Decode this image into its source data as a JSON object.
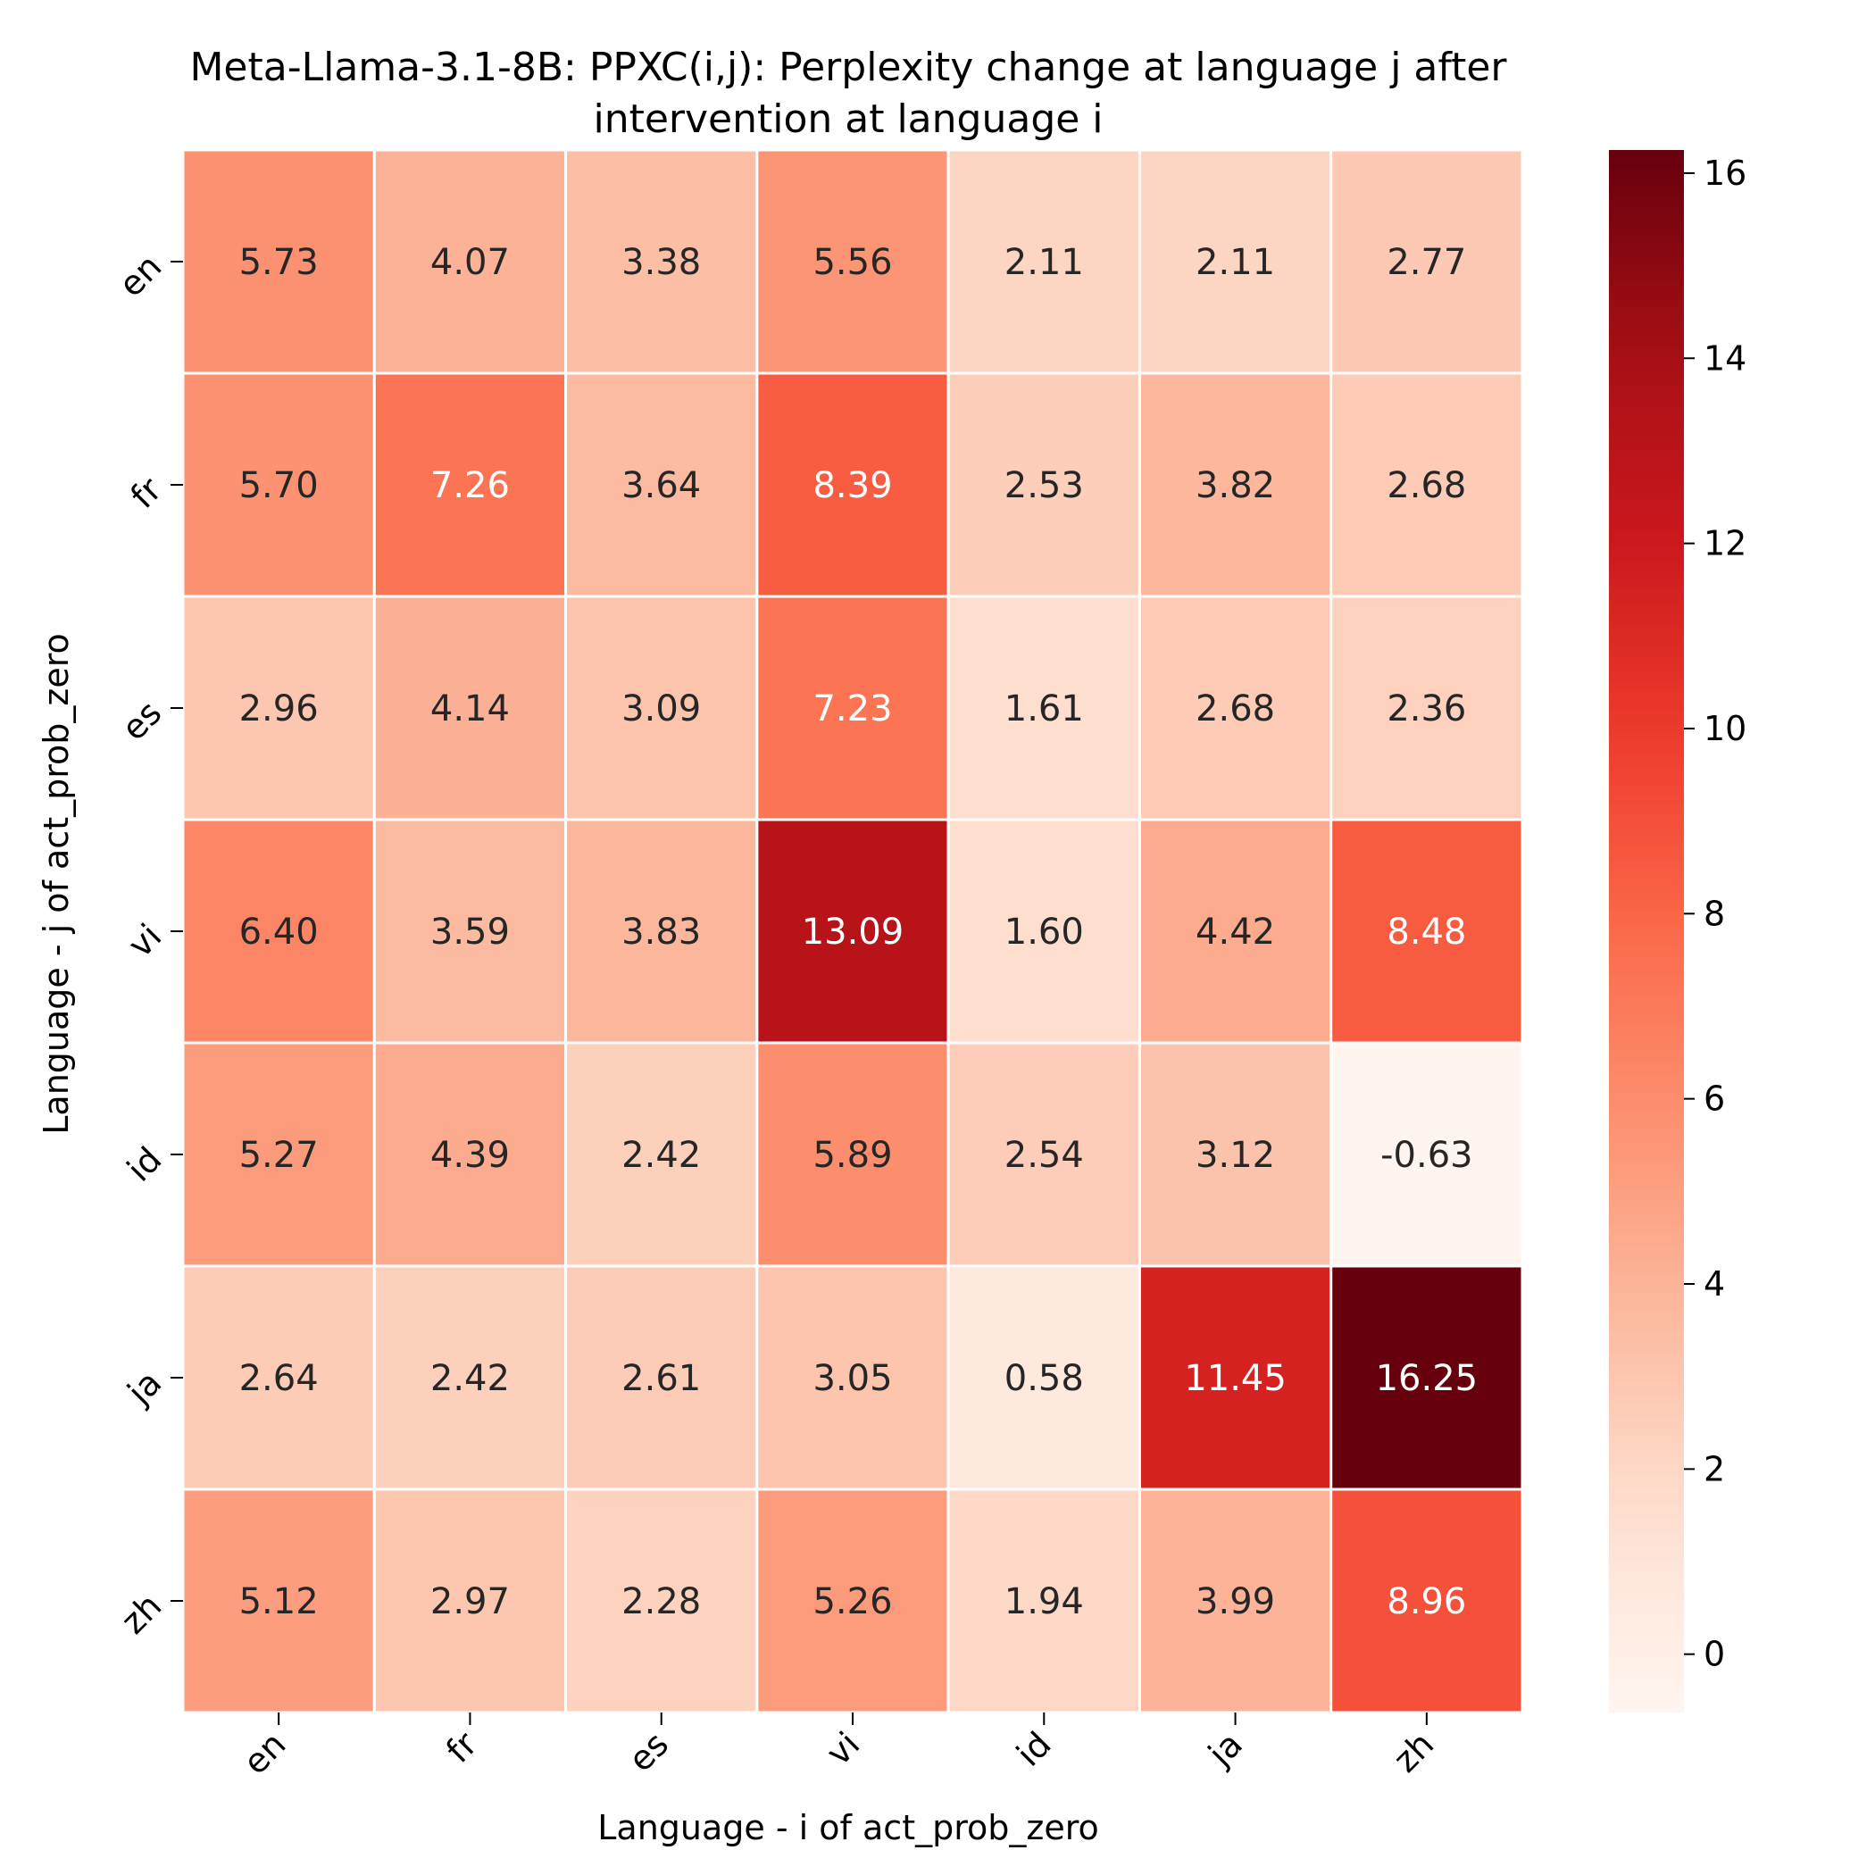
{
  "chart_data": {
    "type": "heatmap",
    "title_line1": "Meta-Llama-3.1-8B: PPXC(i,j): Perplexity change at language j after",
    "title_line2": "intervention at language i",
    "xlabel": "Language - i of act_prob_zero",
    "ylabel": "Language - j of act_prob_zero",
    "x_categories": [
      "en",
      "fr",
      "es",
      "vi",
      "id",
      "ja",
      "zh"
    ],
    "y_categories": [
      "en",
      "fr",
      "es",
      "vi",
      "id",
      "ja",
      "zh"
    ],
    "values": [
      [
        5.73,
        4.07,
        3.38,
        5.56,
        2.11,
        2.11,
        2.77
      ],
      [
        5.7,
        7.26,
        3.64,
        8.39,
        2.53,
        3.82,
        2.68
      ],
      [
        2.96,
        4.14,
        3.09,
        7.23,
        1.61,
        2.68,
        2.36
      ],
      [
        6.4,
        3.59,
        3.83,
        13.09,
        1.6,
        4.42,
        8.48
      ],
      [
        5.27,
        4.39,
        2.42,
        5.89,
        2.54,
        3.12,
        -0.63
      ],
      [
        2.64,
        2.42,
        2.61,
        3.05,
        0.58,
        11.45,
        16.25
      ],
      [
        5.12,
        2.97,
        2.28,
        5.26,
        1.94,
        3.99,
        8.96
      ]
    ],
    "value_format_decimals": 2,
    "colormap": "Reds",
    "vmin": -0.63,
    "vmax": 16.25,
    "colorbar_ticks": [
      0,
      2,
      4,
      6,
      8,
      10,
      12,
      14,
      16
    ]
  }
}
